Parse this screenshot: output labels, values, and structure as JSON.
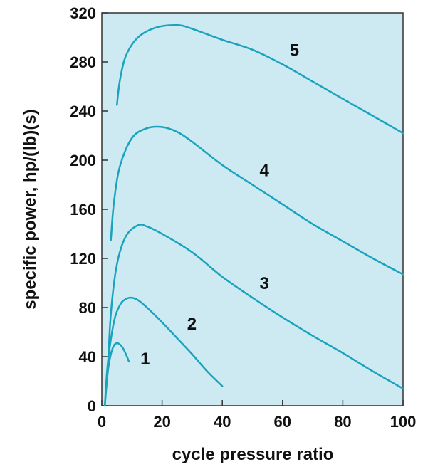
{
  "chart_data": {
    "type": "line",
    "title": "",
    "xlabel": "cycle pressure ratio",
    "ylabel": "specific power, hp/(lb)(s)",
    "xlim": [
      0,
      100
    ],
    "ylim": [
      0,
      320
    ],
    "xticks": [
      0,
      20,
      40,
      60,
      80,
      100
    ],
    "yticks": [
      0,
      40,
      80,
      120,
      160,
      200,
      240,
      280,
      320
    ],
    "grid": false,
    "background_color": "#cdeaf2",
    "line_color": "#1aa3bd",
    "series": [
      {
        "name": "1",
        "x": [
          1,
          2,
          3,
          4,
          5,
          6,
          7,
          8,
          9
        ],
        "y": [
          0,
          28,
          42,
          49,
          51,
          50,
          47,
          42,
          36
        ]
      },
      {
        "name": "2",
        "x": [
          1,
          2,
          4,
          6,
          8,
          10,
          12,
          15,
          20,
          25,
          30,
          35,
          40
        ],
        "y": [
          0,
          35,
          68,
          82,
          87,
          88,
          86,
          80,
          68,
          55,
          42,
          28,
          16
        ]
      },
      {
        "name": "3",
        "x": [
          2,
          3,
          5,
          8,
          12,
          15,
          20,
          30,
          40,
          50,
          60,
          70,
          80,
          90,
          100
        ],
        "y": [
          30,
          75,
          115,
          138,
          147,
          146,
          140,
          125,
          105,
          88,
          72,
          57,
          43,
          28,
          14
        ]
      },
      {
        "name": "4",
        "x": [
          3,
          4,
          6,
          10,
          15,
          20,
          25,
          30,
          40,
          50,
          60,
          70,
          80,
          90,
          100
        ],
        "y": [
          135,
          165,
          195,
          218,
          226,
          227,
          223,
          215,
          196,
          180,
          164,
          148,
          134,
          120,
          107
        ]
      },
      {
        "name": "5",
        "x": [
          5,
          6,
          8,
          12,
          18,
          25,
          30,
          40,
          50,
          60,
          70,
          80,
          90,
          100
        ],
        "y": [
          245,
          265,
          285,
          300,
          308,
          310,
          307,
          298,
          290,
          278,
          264,
          250,
          236,
          222
        ]
      }
    ]
  }
}
